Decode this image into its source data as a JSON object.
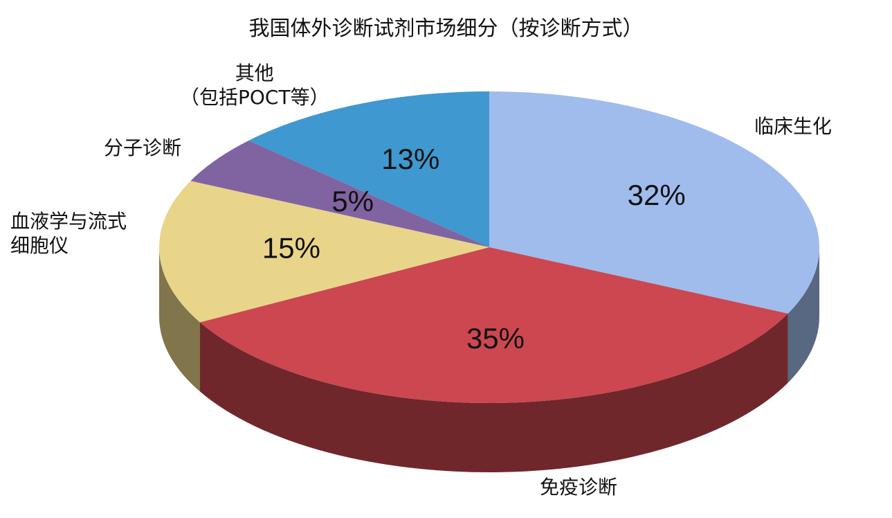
{
  "chart_data": {
    "type": "pie",
    "title": "我国体外诊断试剂市场细分（按诊断方式）",
    "categories": [
      "临床生化",
      "免疫诊断",
      "血液学与流式\n细胞仪",
      "分子诊断",
      "其他\n（包括POCT等）"
    ],
    "values": [
      32,
      35,
      15,
      5,
      13
    ],
    "value_labels": [
      "32%",
      "35%",
      "15%",
      "5%",
      "13%"
    ],
    "colors": [
      "#a0bcec",
      "#cc4750",
      "#e8d589",
      "#8064a2",
      "#3f98cf"
    ]
  }
}
